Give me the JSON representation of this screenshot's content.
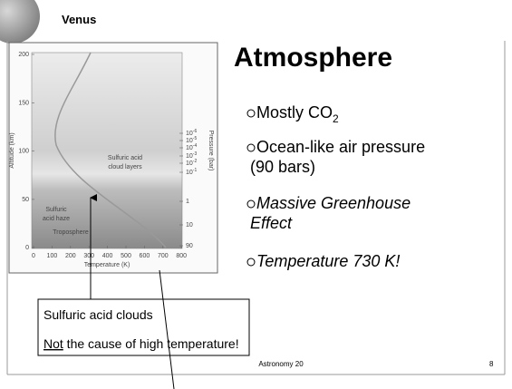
{
  "header": {
    "title": "Venus"
  },
  "slide": {
    "title": "Atmosphere",
    "bullets": [
      {
        "lines": [
          "Mostly CO"
        ],
        "sub": "2"
      },
      {
        "lines": [
          "Ocean-like air pressure",
          "(90 bars)"
        ]
      },
      {
        "lines": [
          "Massive Greenhouse",
          "Effect"
        ],
        "italic": true
      },
      {
        "lines": [
          "Temperature 730 K!"
        ],
        "italic": true
      }
    ]
  },
  "figure": {
    "y_label": "Altitude (km)",
    "x_label": "Temperature (K)",
    "right_label": "Pressure (bar)",
    "y_ticks": [
      200,
      150,
      100,
      50,
      0
    ],
    "x_ticks": [
      0,
      100,
      200,
      300,
      400,
      500,
      600,
      700,
      800
    ],
    "pressure_ticks": [
      {
        "base": 10,
        "exp": -6
      },
      {
        "base": 10,
        "exp": -5
      },
      {
        "base": 10,
        "exp": -4
      },
      {
        "base": 10,
        "exp": -3
      },
      {
        "base": 10,
        "exp": -2
      },
      {
        "base": 10,
        "exp": -1
      },
      1,
      10,
      90
    ],
    "regions": {
      "clouds": [
        "Sulfuric acid",
        "cloud layers"
      ],
      "haze": [
        "Sulfuric",
        "acid haze"
      ],
      "troposphere": "Troposphere"
    }
  },
  "callout": {
    "line1": "Sulfuric acid clouds",
    "underlined": "Not",
    "rest": " the cause of high temperature!"
  },
  "footer": {
    "course": "Astronomy 20",
    "page": "8"
  }
}
